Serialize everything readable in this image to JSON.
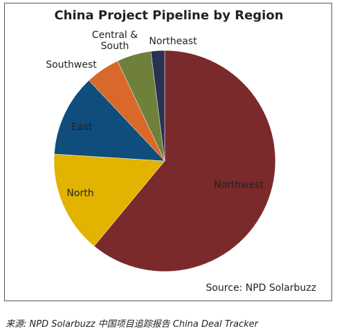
{
  "chart_data": {
    "type": "pie",
    "title": "China Project Pipeline by Region",
    "categories": [
      "Northwest",
      "North",
      "East",
      "Southwest",
      "Central & South",
      "Northeast"
    ],
    "values": [
      61,
      15,
      12,
      5,
      5,
      2
    ],
    "colors": [
      "#7a2a2b",
      "#e2b300",
      "#0e4d7c",
      "#d9692a",
      "#6f7f3c",
      "#2b3150"
    ],
    "source": "Source: NPD Solarbuzz"
  },
  "caption": "来源: NPD Solarbuzz 中国项目追踪报告 China Deal Tracker"
}
